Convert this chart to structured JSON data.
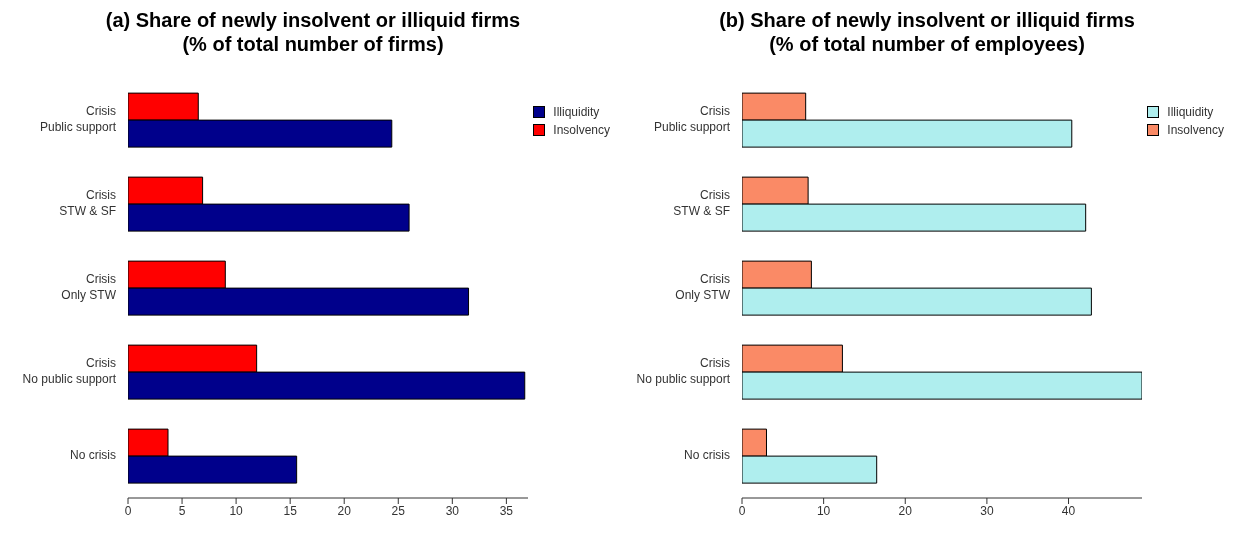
{
  "chart_data": [
    {
      "type": "bar",
      "orientation": "horizontal",
      "title": "(a) Share of newly insolvent or illiquid firms",
      "subtitle": "(% of total number of firms)",
      "categories": [
        "Crisis\nPublic support",
        "Crisis\nSTW & SF",
        "Crisis\nOnly STW",
        "Crisis\nNo public support",
        "No crisis"
      ],
      "series": [
        {
          "name": "Illiquidity",
          "color": "#00008b",
          "values": [
            24.4,
            26.0,
            31.5,
            36.7,
            15.6
          ]
        },
        {
          "name": "Insolvency",
          "color": "#ff0000",
          "values": [
            6.5,
            6.9,
            9.0,
            11.9,
            3.7
          ]
        }
      ],
      "xlim": [
        0,
        37
      ],
      "xticks": [
        0,
        5,
        10,
        15,
        20,
        25,
        30,
        35
      ],
      "grid": false,
      "legend": "top right"
    },
    {
      "type": "bar",
      "orientation": "horizontal",
      "title": "(b) Share of newly insolvent or illiquid firms",
      "subtitle": "(% of total number of employees)",
      "categories": [
        "Crisis\nPublic support",
        "Crisis\nSTW & SF",
        "Crisis\nOnly STW",
        "Crisis\nNo public support",
        "No crisis"
      ],
      "series": [
        {
          "name": "Illiquidity",
          "color": "#afeeee",
          "values": [
            40.4,
            42.1,
            42.8,
            49.0,
            16.5
          ]
        },
        {
          "name": "Insolvency",
          "color": "#fa8a66",
          "values": [
            7.8,
            8.1,
            8.5,
            12.3,
            3.0
          ]
        }
      ],
      "xlim": [
        0,
        49
      ],
      "xticks": [
        0,
        10,
        20,
        30,
        40
      ],
      "grid": false,
      "legend": "top right"
    }
  ]
}
